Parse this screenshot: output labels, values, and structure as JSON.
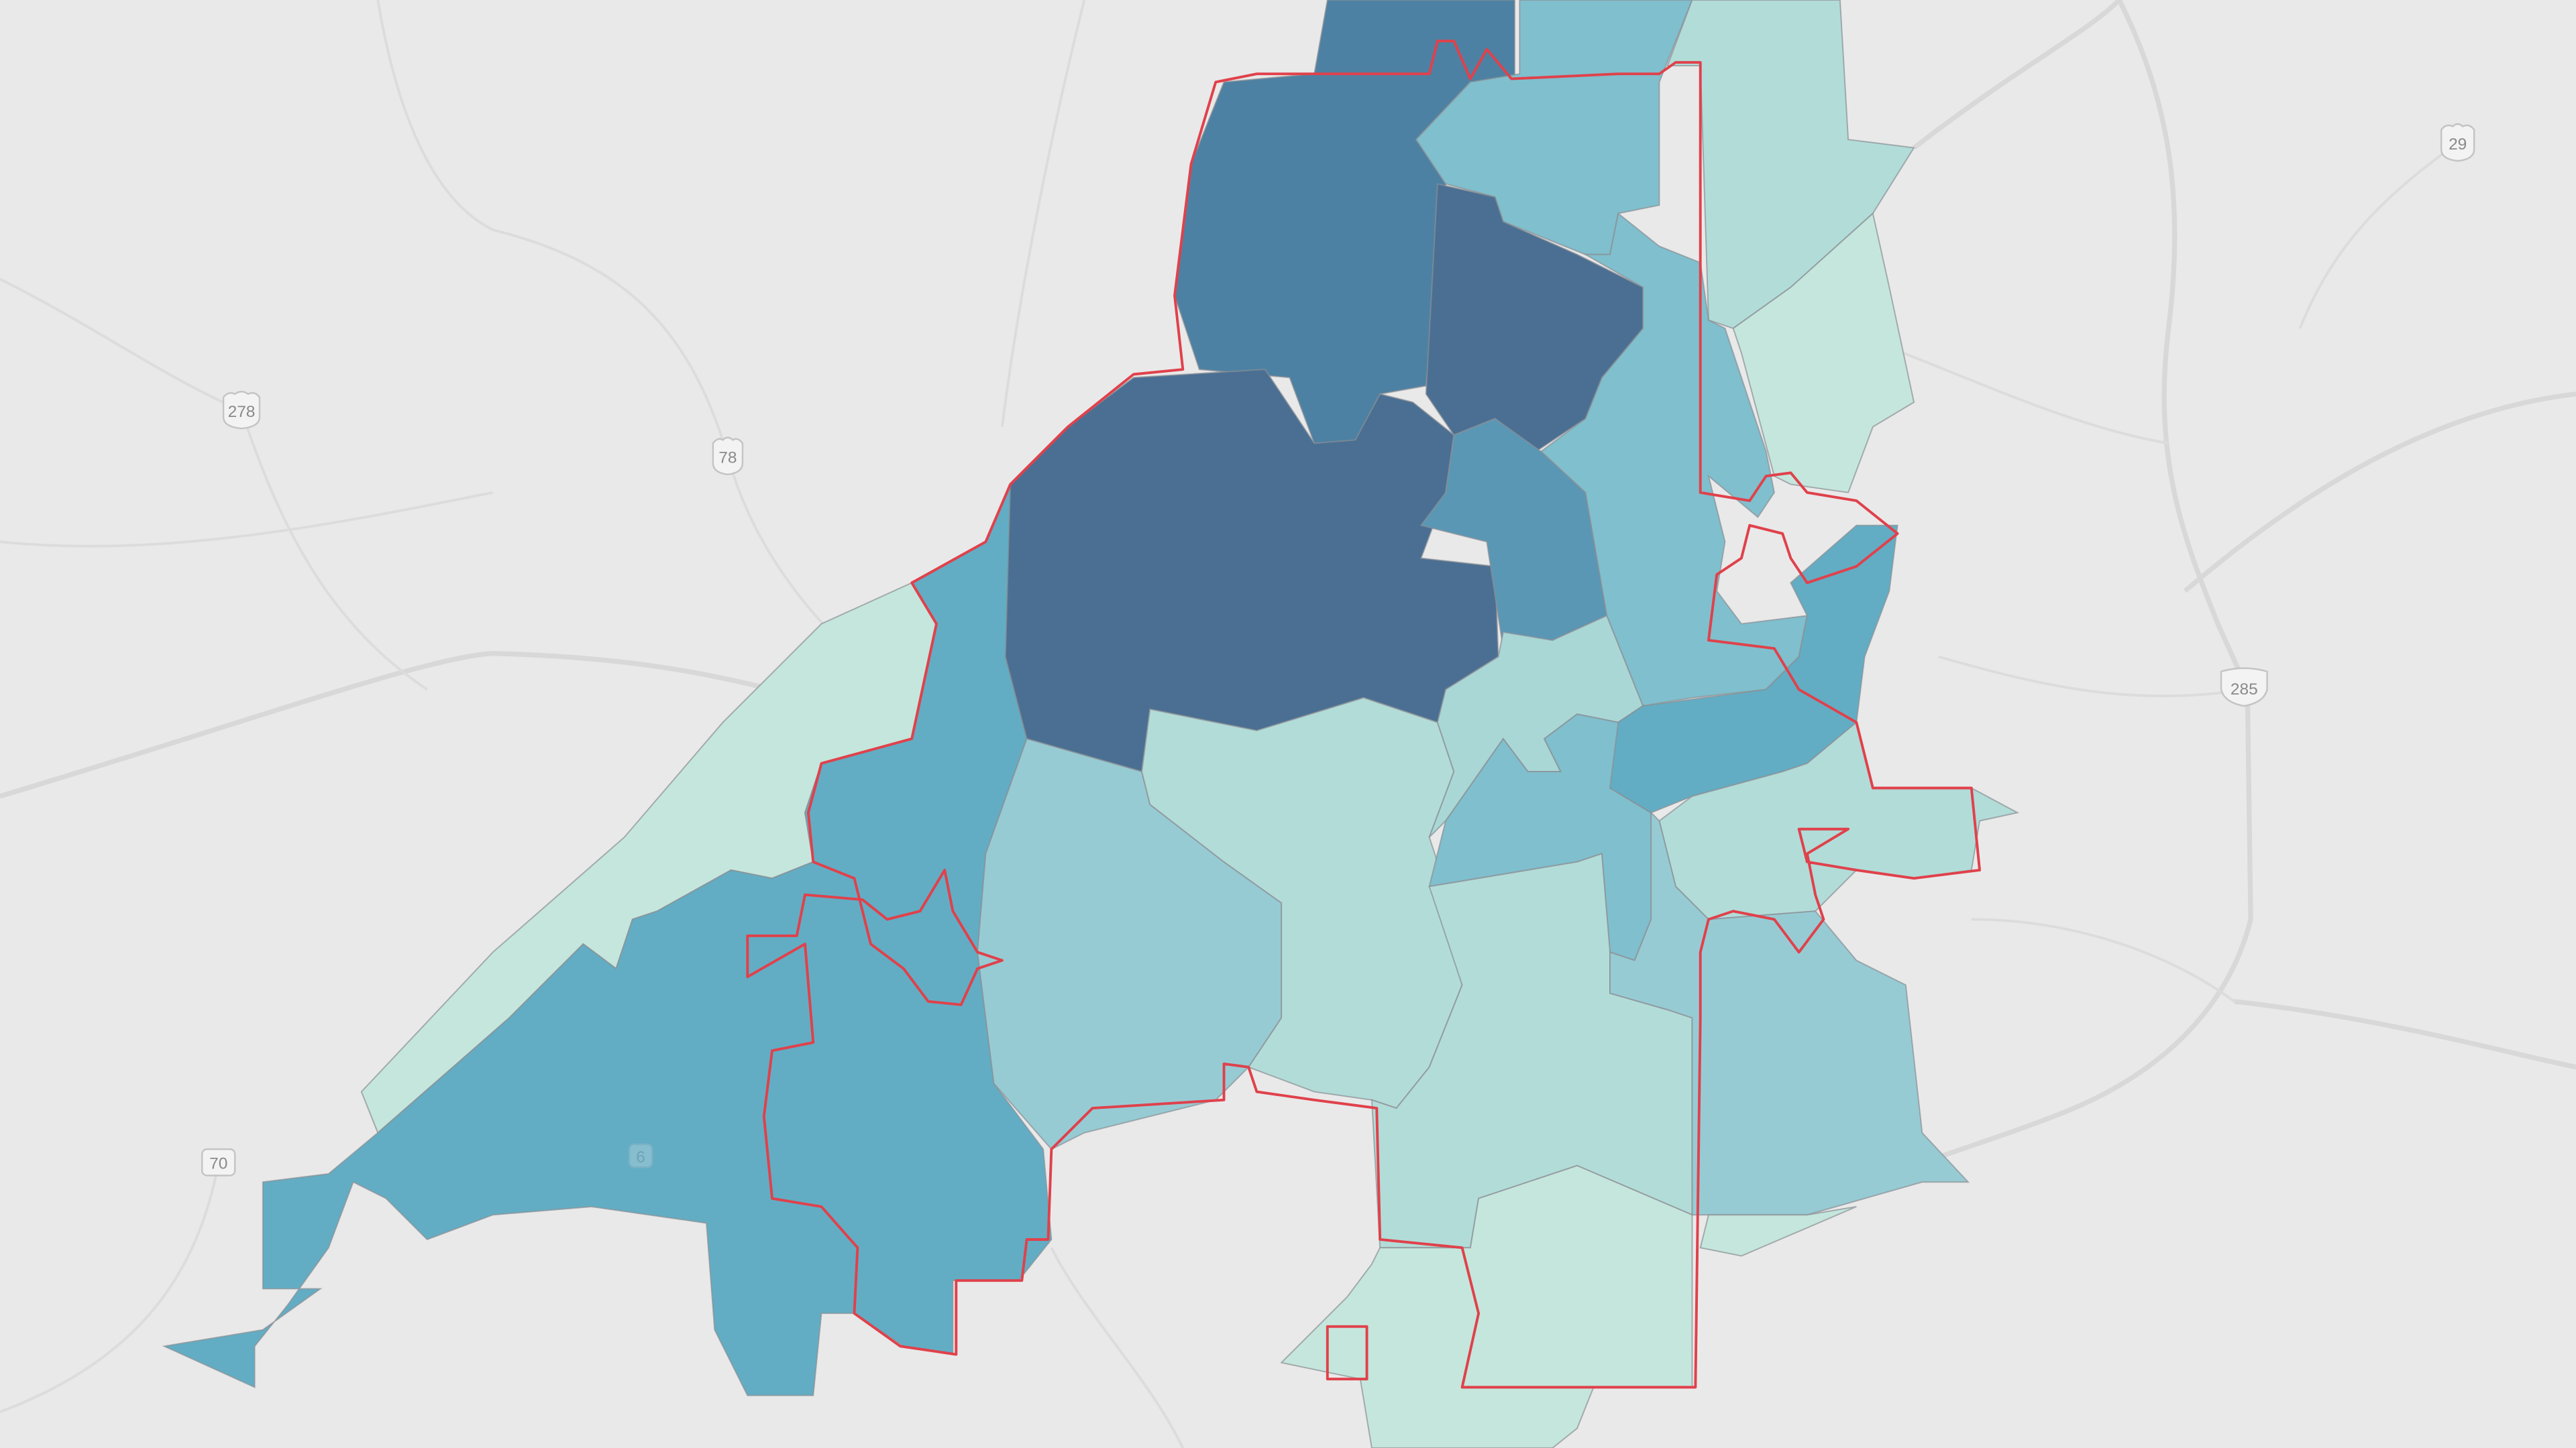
{
  "map": {
    "background_color": "#e9e9e9",
    "boundary_color": "#e0414b",
    "palette": [
      "#c5e6dc",
      "#b2dcd8",
      "#97cbd4",
      "#80bfcd",
      "#62adc4",
      "#5a97b5",
      "#4d81a3",
      "#4a6f93"
    ],
    "shields": [
      {
        "type": "us-route",
        "label": "278"
      },
      {
        "type": "us-route",
        "label": "78"
      },
      {
        "type": "state-route",
        "label": "70"
      },
      {
        "type": "us-route",
        "label": "29"
      },
      {
        "type": "interstate",
        "label": "285"
      },
      {
        "type": "state-route",
        "label": "6"
      }
    ]
  }
}
